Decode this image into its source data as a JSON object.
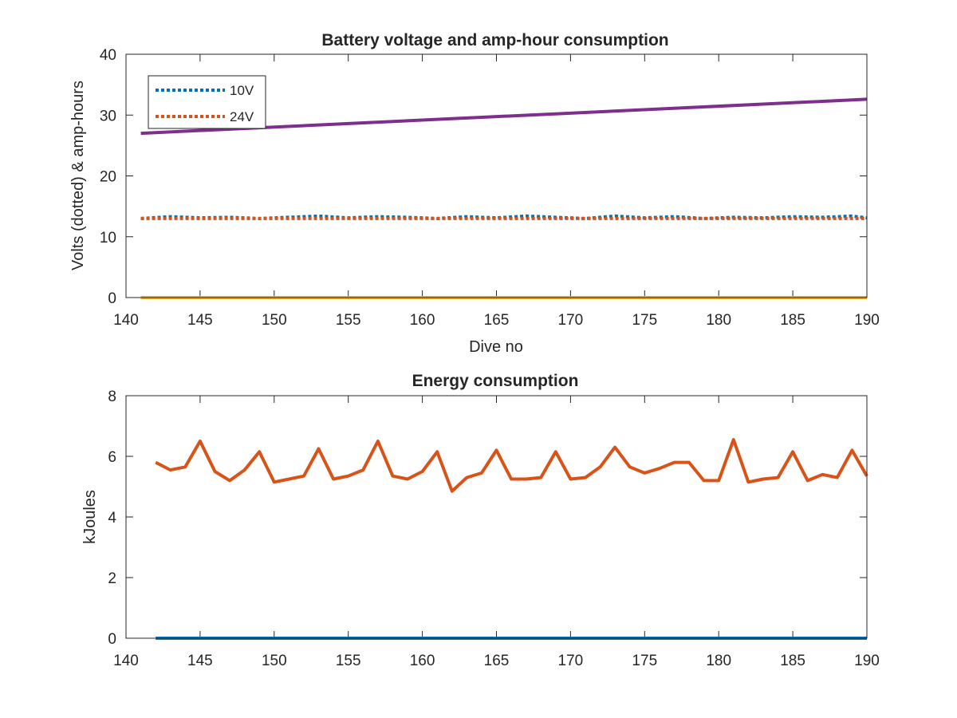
{
  "chart_data": [
    {
      "type": "line",
      "title": "Battery voltage and amp-hour consumption",
      "xlabel": "Dive no",
      "ylabel": "Volts (dotted) & amp-hours",
      "xlim": [
        140,
        190
      ],
      "ylim": [
        0,
        40
      ],
      "xticks": [
        "140",
        "145",
        "150",
        "155",
        "160",
        "165",
        "170",
        "175",
        "180",
        "185",
        "190"
      ],
      "yticks": [
        "0",
        "10",
        "20",
        "30",
        "40"
      ],
      "legend_position": "top-left",
      "grid": false,
      "series": [
        {
          "name": "10V",
          "style": "dotted",
          "color": "#0072BD",
          "x": [
            141,
            143,
            145,
            147,
            149,
            151,
            153,
            155,
            157,
            159,
            161,
            163,
            165,
            167,
            169,
            171,
            173,
            175,
            177,
            179,
            181,
            183,
            185,
            187,
            189,
            190
          ],
          "y": [
            13.0,
            13.3,
            13.1,
            13.2,
            13.0,
            13.2,
            13.4,
            13.1,
            13.3,
            13.2,
            13.0,
            13.3,
            13.1,
            13.4,
            13.2,
            13.0,
            13.4,
            13.1,
            13.3,
            13.0,
            13.2,
            13.1,
            13.3,
            13.2,
            13.4,
            13.1
          ]
        },
        {
          "name": "24V",
          "style": "dotted",
          "color": "#D95319",
          "x": [
            141,
            190
          ],
          "y": [
            13.0,
            13.0
          ]
        },
        {
          "style": "solid",
          "color": "#EDB120",
          "x": [
            141,
            190
          ],
          "y": [
            0,
            0
          ]
        },
        {
          "style": "solid",
          "color": "#7E2F8E",
          "x": [
            141,
            190
          ],
          "y": [
            27.0,
            32.6
          ]
        }
      ]
    },
    {
      "type": "line",
      "title": "Energy consumption",
      "xlabel": "",
      "ylabel": "kJoules",
      "xlim": [
        140,
        190
      ],
      "ylim": [
        0,
        8
      ],
      "xticks": [
        "140",
        "145",
        "150",
        "155",
        "160",
        "165",
        "170",
        "175",
        "180",
        "185",
        "190"
      ],
      "yticks": [
        "0",
        "2",
        "4",
        "6",
        "8"
      ],
      "grid": false,
      "series": [
        {
          "style": "solid",
          "color": "#0072BD",
          "x": [
            142,
            190
          ],
          "y": [
            0,
            0
          ]
        },
        {
          "style": "solid",
          "color": "#D95319",
          "x": [
            142,
            143,
            144,
            145,
            146,
            147,
            148,
            149,
            150,
            151,
            152,
            153,
            154,
            155,
            156,
            157,
            158,
            159,
            160,
            161,
            162,
            163,
            164,
            165,
            166,
            167,
            168,
            169,
            170,
            171,
            172,
            173,
            174,
            175,
            176,
            177,
            178,
            179,
            180,
            181,
            182,
            183,
            184,
            185,
            186,
            187,
            188,
            189,
            190
          ],
          "y": [
            5.8,
            5.55,
            5.65,
            6.5,
            5.5,
            5.2,
            5.55,
            6.15,
            5.15,
            5.25,
            5.35,
            6.25,
            5.25,
            5.35,
            5.55,
            6.5,
            5.35,
            5.25,
            5.5,
            6.15,
            4.85,
            5.3,
            5.45,
            6.2,
            5.25,
            5.25,
            5.3,
            6.15,
            5.25,
            5.3,
            5.65,
            6.3,
            5.65,
            5.45,
            5.6,
            5.8,
            5.8,
            5.2,
            5.2,
            6.55,
            5.15,
            5.25,
            5.3,
            6.15,
            5.2,
            5.4,
            5.3,
            6.2,
            5.35
          ]
        }
      ]
    }
  ]
}
